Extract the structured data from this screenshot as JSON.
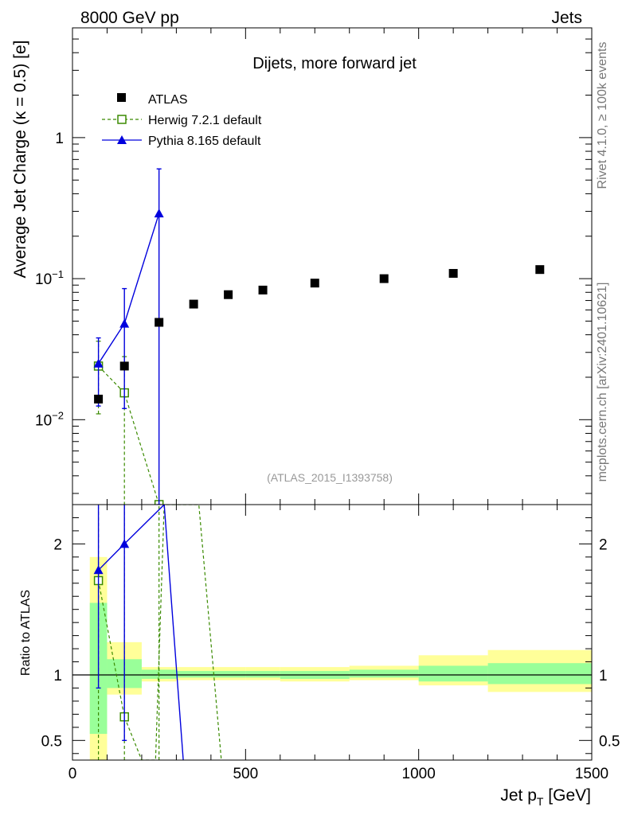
{
  "header": {
    "left": "8000 GeV pp",
    "right": "Jets"
  },
  "side_labels": {
    "upper": "Rivet 4.1.0, ≥ 100k events",
    "lower": "mcplots.cern.ch [arXiv:2401.10621]"
  },
  "colors": {
    "atlas": "#000000",
    "herwig": "#3a8a00",
    "pythia": "#0000dd",
    "band_inner": "#99ff99",
    "band_outer": "#ffff99"
  },
  "chart_data": {
    "type": "scatter",
    "title": "Dijets, more forward jet",
    "watermark": "(ATLAS_2015_I1393758)",
    "xlabel": "Jet p_T [GeV]",
    "ylabel": "Average Jet Charge (κ = 0.5) [e]",
    "ratio_ylabel": "Ratio to ATLAS",
    "xlim": [
      0,
      1500
    ],
    "ylim": [
      0.0025,
      6
    ],
    "ratio_ylim": [
      0.35,
      2.3
    ],
    "x_ticks": [
      0,
      500,
      1000,
      1500
    ],
    "x_tick_labels": [
      "0",
      "500",
      "1000",
      "1500"
    ],
    "y_ticks": [
      0.01,
      0.1,
      1
    ],
    "y_tick_labels": [
      "10^-2",
      "10^-1",
      "1"
    ],
    "ratio_ticks": [
      0.5,
      1,
      2
    ],
    "ratio_tick_labels": [
      "0.5",
      "1",
      "2"
    ],
    "series": [
      {
        "name": "ATLAS",
        "style": "square-filled",
        "x": [
          75,
          150,
          250,
          350,
          450,
          550,
          700,
          900,
          1100,
          1350
        ],
        "y": [
          0.014,
          0.024,
          0.049,
          0.066,
          0.077,
          0.083,
          0.093,
          0.1,
          0.109,
          0.116
        ],
        "x_edges": [
          50,
          100,
          200,
          300,
          400,
          500,
          600,
          800,
          1000,
          1200,
          1500
        ],
        "ratio_inner": [
          [
            0.55,
            1.55
          ],
          [
            0.9,
            1.12
          ],
          [
            0.97,
            1.04
          ],
          [
            0.98,
            1.03
          ],
          [
            0.98,
            1.03
          ],
          [
            0.98,
            1.03
          ],
          [
            0.97,
            1.03
          ],
          [
            0.98,
            1.04
          ],
          [
            0.95,
            1.07
          ],
          [
            0.93,
            1.09
          ]
        ],
        "ratio_outer": [
          [
            0.35,
            1.9
          ],
          [
            0.85,
            1.25
          ],
          [
            0.95,
            1.06
          ],
          [
            0.96,
            1.06
          ],
          [
            0.96,
            1.06
          ],
          [
            0.96,
            1.06
          ],
          [
            0.95,
            1.06
          ],
          [
            0.96,
            1.07
          ],
          [
            0.92,
            1.15
          ],
          [
            0.87,
            1.19
          ]
        ]
      },
      {
        "name": "Herwig 7.2.1 default",
        "style": "square-open-dashed",
        "x": [
          75,
          150,
          250
        ],
        "y": [
          0.024,
          0.0155,
          0.0025
        ],
        "y_err": [
          [
            0.011,
            0.036
          ],
          [
            0.0012,
            0.028
          ],
          [
            0.0025,
            0.0025
          ]
        ],
        "ratio_x": [
          75,
          150,
          200,
          240,
          265,
          325,
          365,
          430
        ],
        "ratio": [
          1.72,
          0.68,
          0.35,
          0.35,
          2.3,
          2.3,
          2.3,
          0.35
        ]
      },
      {
        "name": "Pythia 8.165 default",
        "style": "triangle-filled-solid",
        "x": [
          75,
          150,
          250
        ],
        "y": [
          0.025,
          0.048,
          0.29
        ],
        "y_err": [
          [
            0.0125,
            0.038
          ],
          [
            0.012,
            0.085
          ],
          [
            0.0025,
            0.6
          ]
        ],
        "ratio_x": [
          75,
          150,
          265,
          320
        ],
        "ratio": [
          1.8,
          2.0,
          2.3,
          0.35
        ],
        "ratio_err": [
          [
            0.9,
            2.3
          ],
          [
            0.5,
            2.3
          ]
        ]
      }
    ]
  }
}
